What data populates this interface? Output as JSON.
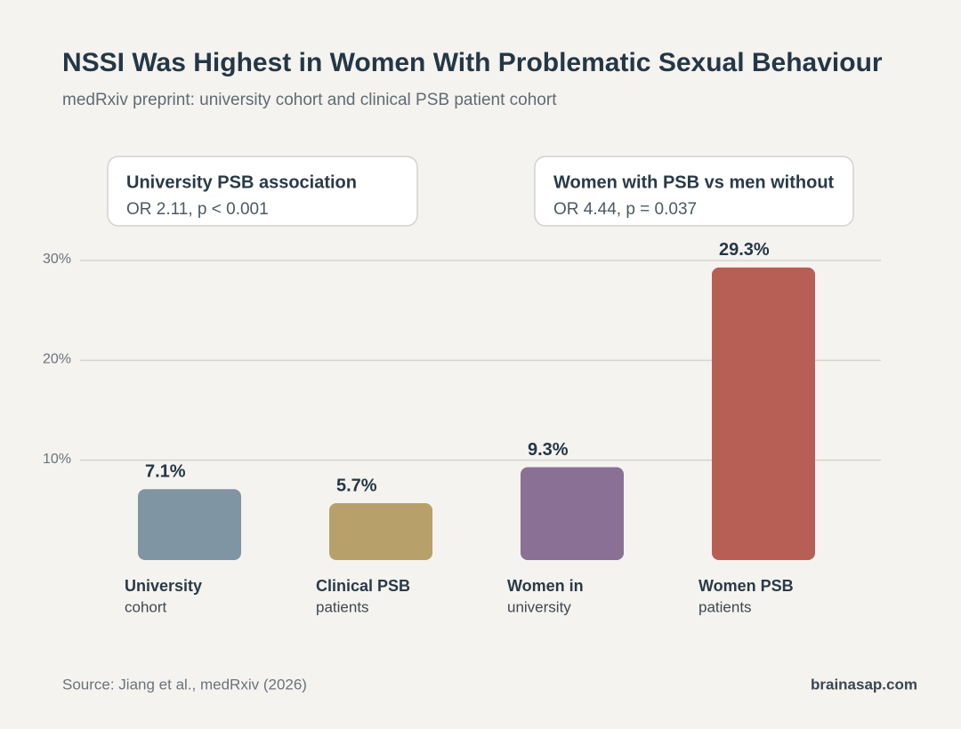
{
  "chart_data": {
    "type": "bar",
    "title": "NSSI Was Highest in Women With Problematic Sexual Behaviour",
    "subtitle": "medRxiv preprint: university cohort and clinical PSB patient cohort",
    "categories": [
      [
        "University",
        "cohort"
      ],
      [
        "Clinical PSB",
        "patients"
      ],
      [
        "Women in",
        "university"
      ],
      [
        "Women PSB",
        "patients"
      ]
    ],
    "values": [
      7.1,
      5.7,
      9.3,
      29.3
    ],
    "value_labels": [
      "7.1%",
      "5.7%",
      "9.3%",
      "29.3%"
    ],
    "colors": [
      "#7f95a3",
      "#b8a06a",
      "#8a7095",
      "#b85f55"
    ],
    "ylim": [
      0,
      30
    ],
    "yticks": [
      {
        "value": 10,
        "label": "10%"
      },
      {
        "value": 20,
        "label": "20%"
      },
      {
        "value": 30,
        "label": "30%"
      }
    ],
    "grid": true,
    "annotations": [
      {
        "title": "University PSB association",
        "text": "OR 2.11, p < 0.001"
      },
      {
        "title": "Women with PSB vs men without",
        "text": "OR 4.44, p = 0.037"
      }
    ],
    "source": "Source: Jiang et al., medRxiv (2026)",
    "brand": "brainasap.com"
  }
}
